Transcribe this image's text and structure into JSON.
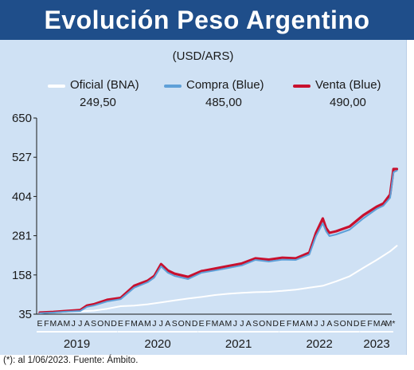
{
  "title": "Evolución Peso Argentino",
  "unit": "(USD/ARS)",
  "footnote": "(*): al 1/06/2023. Fuente: Ámbito.",
  "colors": {
    "title_bg": "#1f4e8a",
    "panel_bg": "#cfe1f4",
    "oficial": "#ffffff",
    "compra": "#5fa0d8",
    "venta": "#c8102e"
  },
  "chart_data": {
    "type": "line",
    "ylim": [
      35,
      650
    ],
    "yticks": [
      35,
      158,
      281,
      404,
      527,
      650
    ],
    "legend_position": "top",
    "grid": false,
    "month_letters": [
      "E",
      "F",
      "M",
      "A",
      "M",
      "J",
      "J",
      "A",
      "S",
      "O",
      "N",
      "D",
      "E",
      "F",
      "M",
      "A",
      "M",
      "J",
      "J",
      "A",
      "S",
      "O",
      "N",
      "D",
      "E",
      "F",
      "M",
      "A",
      "M",
      "J",
      "J",
      "A",
      "S",
      "O",
      "N",
      "D",
      "E",
      "F",
      "M",
      "A",
      "M",
      "J",
      "J",
      "A",
      "S",
      "O",
      "N",
      "D",
      "E",
      "F",
      "M",
      "A",
      "M*"
    ],
    "years": [
      "2019",
      "2020",
      "2021",
      "2022",
      "2023"
    ],
    "series": [
      {
        "name": "Oficial (BNA)",
        "last_value": "249,50",
        "x": [
          0,
          2,
          4,
          6,
          8,
          10,
          12,
          14,
          16,
          18,
          20,
          22,
          24,
          26,
          28,
          30,
          32,
          34,
          36,
          38,
          40,
          42,
          44,
          46,
          48,
          50,
          52,
          53
        ],
        "values": [
          38,
          40,
          42,
          44,
          46,
          52,
          60,
          62,
          66,
          72,
          78,
          84,
          89,
          95,
          99,
          102,
          104,
          105,
          108,
          112,
          118,
          124,
          138,
          154,
          180,
          205,
          232,
          249.5
        ]
      },
      {
        "name": "Compra (Blue)",
        "last_value": "485,00",
        "x": [
          0,
          2,
          4,
          6,
          7,
          8,
          10,
          12,
          14,
          16,
          17,
          18,
          19,
          20,
          22,
          24,
          26,
          28,
          30,
          32,
          34,
          36,
          38,
          40,
          41,
          42,
          42.5,
          43,
          44,
          46,
          48,
          50,
          51,
          52,
          52.5,
          53
        ],
        "values": [
          38,
          40,
          43,
          45,
          58,
          62,
          75,
          82,
          118,
          135,
          150,
          185,
          165,
          155,
          145,
          165,
          172,
          180,
          188,
          205,
          200,
          206,
          205,
          222,
          280,
          320,
          295,
          280,
          285,
          300,
          335,
          365,
          375,
          400,
          480,
          485
        ]
      },
      {
        "name": "Venta (Blue)",
        "last_value": "490,00",
        "x": [
          0,
          2,
          4,
          6,
          7,
          8,
          10,
          12,
          14,
          16,
          17,
          18,
          19,
          20,
          22,
          24,
          26,
          28,
          30,
          32,
          34,
          36,
          38,
          40,
          41,
          42,
          42.5,
          43,
          44,
          46,
          48,
          50,
          51,
          52,
          52.5,
          53
        ],
        "values": [
          40,
          42,
          45,
          48,
          62,
          66,
          80,
          86,
          124,
          140,
          155,
          192,
          172,
          162,
          152,
          170,
          178,
          186,
          194,
          210,
          206,
          212,
          210,
          228,
          290,
          335,
          305,
          290,
          295,
          310,
          345,
          372,
          382,
          410,
          490,
          490
        ]
      }
    ]
  }
}
